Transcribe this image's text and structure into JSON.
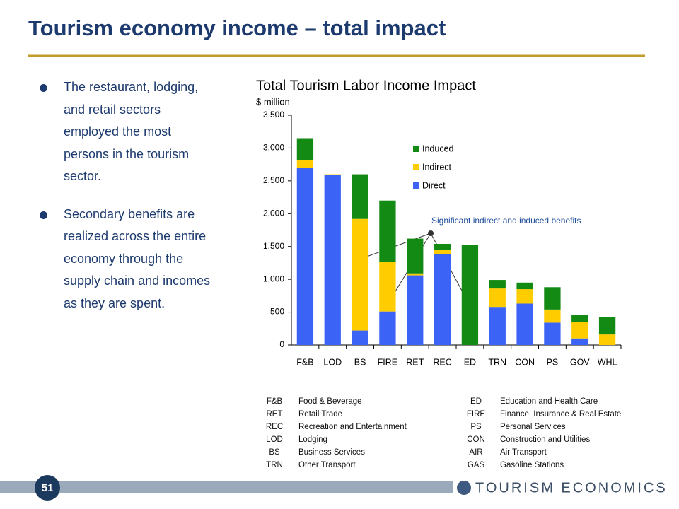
{
  "title": "Tourism economy income – total impact",
  "bullets": [
    "The restaurant, lodging, and retail sectors employed the most persons in the tourism sector.",
    "Secondary benefits are realized across the entire economy through the supply chain and incomes as they are spent."
  ],
  "chart_data": {
    "type": "bar",
    "stacked": true,
    "title": "Total Tourism Labor Income Impact",
    "y_label": "$ million",
    "categories": [
      "F&B",
      "LOD",
      "BS",
      "FIRE",
      "RET",
      "REC",
      "ED",
      "TRN",
      "CON",
      "PS",
      "GOV",
      "WHL"
    ],
    "series": [
      {
        "name": "Direct",
        "color": "#3b64f6",
        "values": [
          2700,
          2590,
          220,
          510,
          1060,
          1380,
          0,
          580,
          630,
          340,
          100,
          0
        ]
      },
      {
        "name": "Indirect",
        "color": "#ffcc00",
        "values": [
          120,
          10,
          1700,
          750,
          30,
          70,
          0,
          280,
          220,
          200,
          250,
          160
        ]
      },
      {
        "name": "Induced",
        "color": "#138a13",
        "values": [
          330,
          0,
          680,
          940,
          530,
          90,
          1520,
          130,
          100,
          340,
          110,
          270
        ]
      }
    ],
    "ylim": [
      0,
      3500
    ],
    "yticks": [
      0,
      500,
      {
        "value": 1000,
        "label": "1,000"
      },
      {
        "value": 1500,
        "label": "1,500"
      },
      {
        "value": 2000,
        "label": "2,000"
      },
      {
        "value": 2500,
        "label": "2,500"
      },
      {
        "value": 3000,
        "label": "3,000"
      },
      {
        "value": 3500,
        "label": "3,500"
      }
    ],
    "annotation": "Significant indirect and induced benefits"
  },
  "glossary": [
    [
      "F&B",
      "Food & Beverage",
      "ED",
      "Education and Health Care"
    ],
    [
      "RET",
      "Retail Trade",
      "FIRE",
      "Finance, Insurance & Real Estate"
    ],
    [
      "REC",
      "Recreation and Entertainment",
      "PS",
      "Personal Services"
    ],
    [
      "LOD",
      "Lodging",
      "CON",
      "Construction and Utilities"
    ],
    [
      "BS",
      "Business Services",
      "AIR",
      "Air Transport"
    ],
    [
      "TRN",
      "Other Transport",
      "GAS",
      "Gasoline Stations"
    ]
  ],
  "page_number": "51",
  "logo": "TOURISM ECONOMICS"
}
